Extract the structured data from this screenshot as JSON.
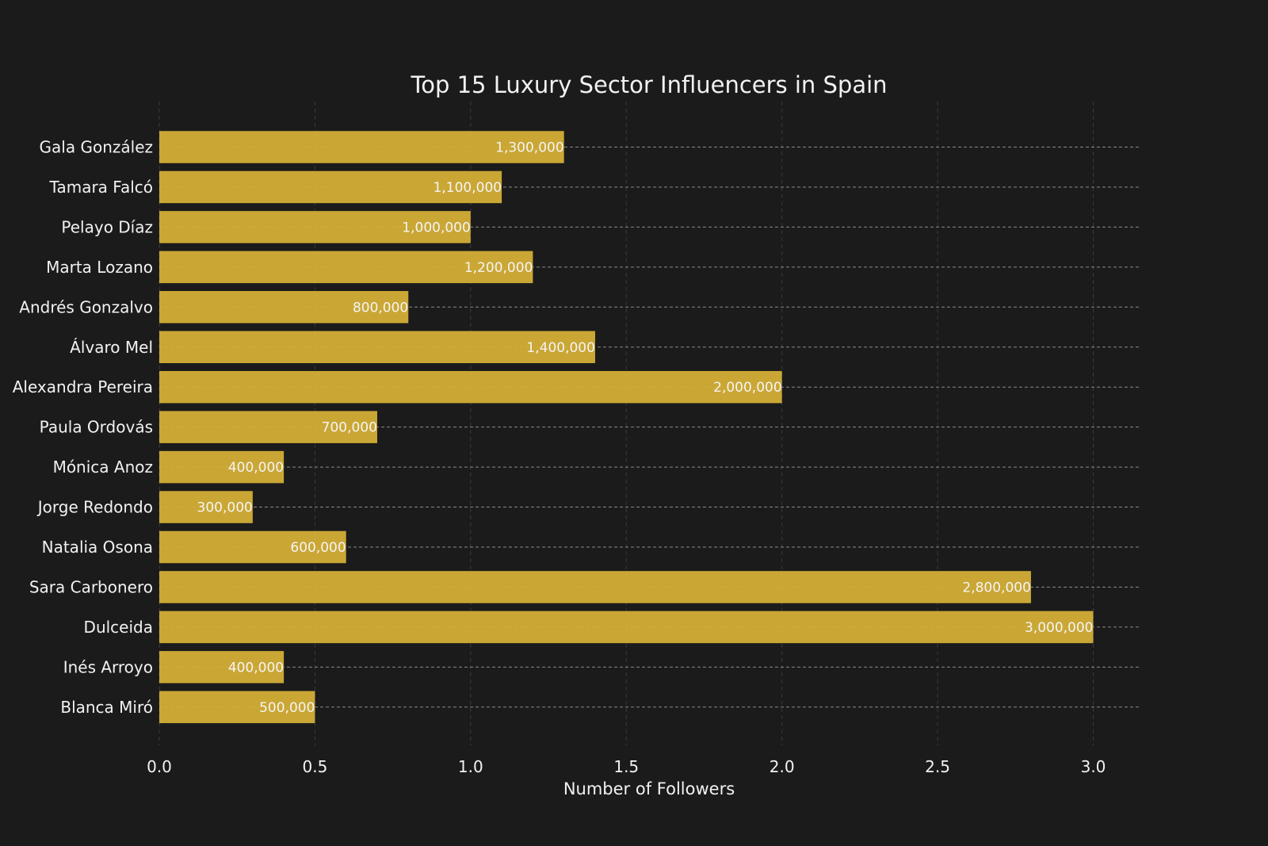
{
  "chart_data": {
    "type": "bar",
    "orientation": "horizontal",
    "title": "Top 15 Luxury Sector Influencers in Spain",
    "xlabel": "Number of Followers",
    "ylabel": "",
    "categories": [
      "Gala González",
      "Tamara Falcó",
      "Pelayo Díaz",
      "Marta Lozano",
      "Andrés Gonzalvo",
      "Álvaro Mel",
      "Alexandra Pereira",
      "Paula Ordovás",
      "Mónica Anoz",
      "Jorge Redondo",
      "Natalia Osona",
      "Sara Carbonero",
      "Dulceida",
      "Inés Arroyo",
      "Blanca Miró"
    ],
    "values": [
      1300000,
      1100000,
      1000000,
      1200000,
      800000,
      1400000,
      2000000,
      700000,
      400000,
      300000,
      600000,
      2800000,
      3000000,
      400000,
      500000
    ],
    "value_labels": [
      "1,300,000",
      "1,100,000",
      "1,000,000",
      "1,200,000",
      "800,000",
      "1,400,000",
      "2,000,000",
      "700,000",
      "400,000",
      "300,000",
      "600,000",
      "2,800,000",
      "3,000,000",
      "400,000",
      "500,000"
    ],
    "xticks": [
      0,
      500000,
      1000000,
      1500000,
      2000000,
      2500000,
      3000000
    ],
    "xtick_labels": [
      "0.0",
      "0.5",
      "1.0",
      "1.5",
      "2.0",
      "2.5",
      "3.0"
    ],
    "xlim": [
      0,
      3150000
    ],
    "grid": true,
    "legend": false
  },
  "colors": {
    "background": "#1b1b1b",
    "bar": "#d4af37",
    "text": "#f2f2f2",
    "grid_x": "#3a3a3a",
    "grid_y": "#8a8a8a"
  }
}
